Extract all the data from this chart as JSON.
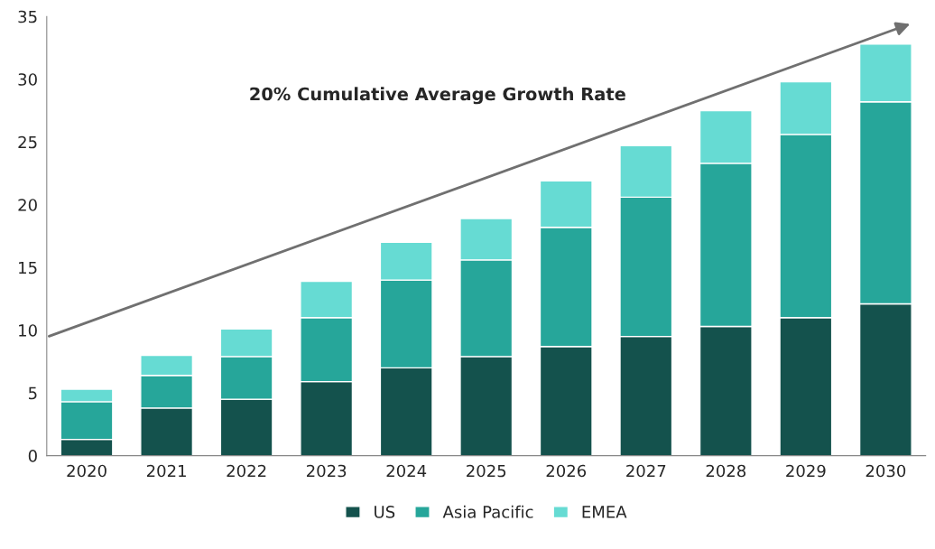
{
  "chart_data": {
    "type": "bar",
    "stacked": true,
    "categories": [
      "2020",
      "2021",
      "2022",
      "2023",
      "2024",
      "2025",
      "2026",
      "2027",
      "2028",
      "2029",
      "2030"
    ],
    "series": [
      {
        "name": "US",
        "color": "#14524d",
        "values": [
          1.3,
          3.8,
          4.5,
          5.9,
          7.0,
          7.9,
          8.7,
          9.5,
          10.3,
          11.0,
          12.1
        ]
      },
      {
        "name": "Asia Pacific",
        "color": "#26a69a",
        "values": [
          3.0,
          2.6,
          3.4,
          5.1,
          7.0,
          7.7,
          9.5,
          11.1,
          13.0,
          14.6,
          16.1
        ]
      },
      {
        "name": "EMEA",
        "color": "#66dbd3",
        "values": [
          1.0,
          1.6,
          2.2,
          2.9,
          3.0,
          3.3,
          3.7,
          4.1,
          4.2,
          4.2,
          4.6
        ]
      }
    ],
    "ylim": [
      0,
      35
    ],
    "yticks": [
      0,
      5,
      10,
      15,
      20,
      25,
      30,
      35
    ],
    "annotations": [
      "20% Cumulative Average Growth Rate"
    ],
    "grid": false,
    "legend": "bottom"
  }
}
